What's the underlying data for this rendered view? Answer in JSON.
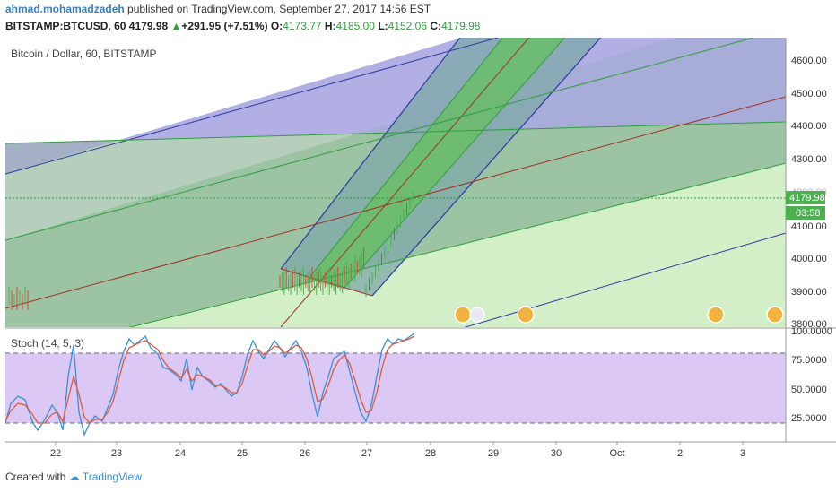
{
  "header": {
    "author": "ahmad.mohamadzadeh",
    "published_text": "published on TradingView.com, September 27, 2017 14:56 EST",
    "symbol": "BITSTAMP:BTCUSD, 60",
    "last": "4179.98",
    "change": "+291.95 (+7.51%)",
    "open_label": "O:",
    "open": "4173.77",
    "high_label": "H:",
    "high": "4185.00",
    "low_label": "L:",
    "low": "4152.06",
    "close_label": "C:",
    "close": "4179.98"
  },
  "main_pane": {
    "title": "Bitcoin / Dollar, 60, BITSTAMP",
    "price_tag": "4179.98",
    "countdown": "03:58",
    "y_ticks": [
      "4600.00",
      "4500.00",
      "4400.00",
      "4300.00",
      "4200.00",
      "4100.00",
      "4000.00",
      "3900.00",
      "3800.00"
    ]
  },
  "indicator_pane": {
    "title": "Stoch (14, 5, 3)",
    "y_ticks": [
      "100.0000",
      "75.0000",
      "50.0000",
      "25.0000"
    ]
  },
  "x_axis": {
    "ticks": [
      "22",
      "23",
      "24",
      "25",
      "26",
      "27",
      "28",
      "29",
      "30",
      "Oct",
      "2",
      "3"
    ]
  },
  "colors": {
    "up_candle": "#4caf50",
    "down_candle": "#e04040",
    "stoch_k": "#3a8ed6",
    "stoch_d": "#e05a3a",
    "stoch_band": "#dcc8f5",
    "pitchfork_outer": "#2a3aa0",
    "pitchfork_inner": "#2e9e3a",
    "median_line": "#a03020"
  },
  "chart_data": {
    "type": "candlestick",
    "symbol": "BITSTAMP:BTCUSD",
    "interval": "60",
    "x_range": [
      "22",
      "3"
    ],
    "y_range": [
      3800,
      4650
    ],
    "indicator": {
      "name": "Stoch (14, 5, 3)",
      "levels": [
        80,
        20
      ],
      "ylim": [
        0,
        100
      ]
    }
  },
  "footer": {
    "created_with": "Created with",
    "brand": "TradingView"
  }
}
